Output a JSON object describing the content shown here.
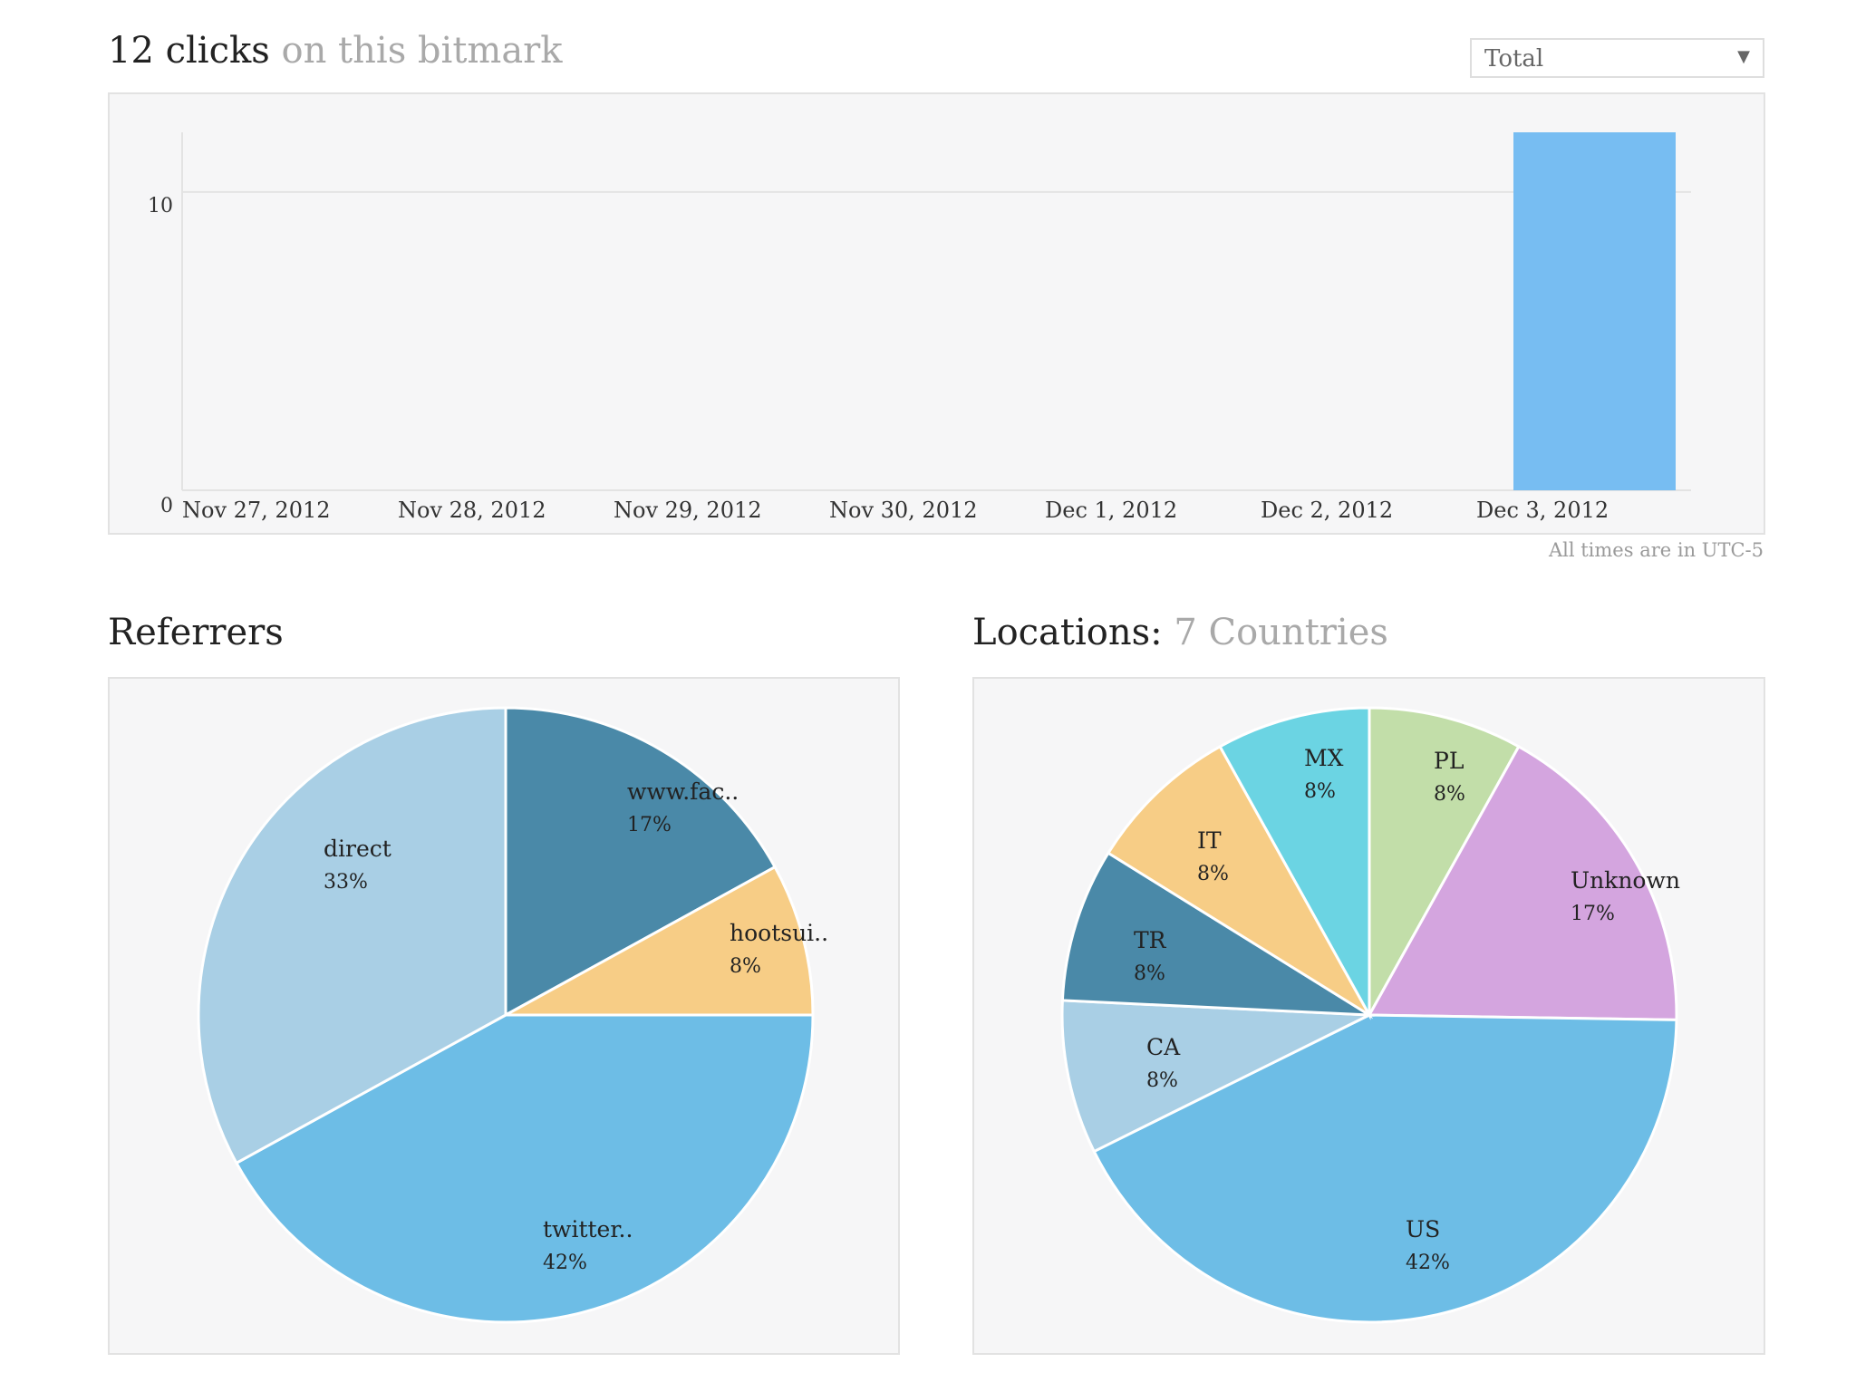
{
  "header": {
    "count": "12 clicks",
    "subtitle": "on this bitmark"
  },
  "filter": {
    "selected": "Total"
  },
  "timezone_note": "All times are in UTC-5",
  "referrers_title": "Referrers",
  "locations": {
    "title": "Locations:",
    "countries": "7 Countries"
  },
  "colors": {
    "bar": "#77bdf2",
    "light_blue": "#a9cfe5",
    "dark_blue": "#4a89a8",
    "orange": "#f7cd86",
    "sky": "#6dbde6",
    "cyan": "#6bd4e3",
    "green": "#c2dea9",
    "purple": "#d4a5df"
  },
  "chart_data": [
    {
      "type": "bar",
      "categories": [
        "Nov 27, 2012",
        "Nov 28, 2012",
        "Nov 29, 2012",
        "Nov 30, 2012",
        "Dec 1, 2012",
        "Dec 2, 2012",
        "Dec 3, 2012"
      ],
      "values": [
        0,
        0,
        0,
        0,
        0,
        0,
        12
      ],
      "yticks": [
        0,
        10
      ],
      "ylim": [
        0,
        12
      ],
      "grid": true
    },
    {
      "type": "pie",
      "slices": [
        {
          "label": "www.fac..",
          "pct": "17%",
          "value": 17,
          "color": "#4a89a8"
        },
        {
          "label": "hootsui..",
          "pct": "8%",
          "value": 8,
          "color": "#f7cd86"
        },
        {
          "label": "twitter..",
          "pct": "42%",
          "value": 42,
          "color": "#6dbde6"
        },
        {
          "label": "direct",
          "pct": "33%",
          "value": 33,
          "color": "#a9cfe5"
        }
      ]
    },
    {
      "type": "pie",
      "slices": [
        {
          "label": "PL",
          "pct": "8%",
          "value": 8,
          "color": "#c2dea9"
        },
        {
          "label": "Unknown",
          "pct": "17%",
          "value": 17,
          "color": "#d4a5df"
        },
        {
          "label": "US",
          "pct": "42%",
          "value": 42,
          "color": "#6dbde6"
        },
        {
          "label": "CA",
          "pct": "8%",
          "value": 8,
          "color": "#a9cfe5"
        },
        {
          "label": "TR",
          "pct": "8%",
          "value": 8,
          "color": "#4a89a8"
        },
        {
          "label": "IT",
          "pct": "8%",
          "value": 8,
          "color": "#f7cd86"
        },
        {
          "label": "MX",
          "pct": "8%",
          "value": 8,
          "color": "#6bd4e3"
        }
      ]
    }
  ]
}
